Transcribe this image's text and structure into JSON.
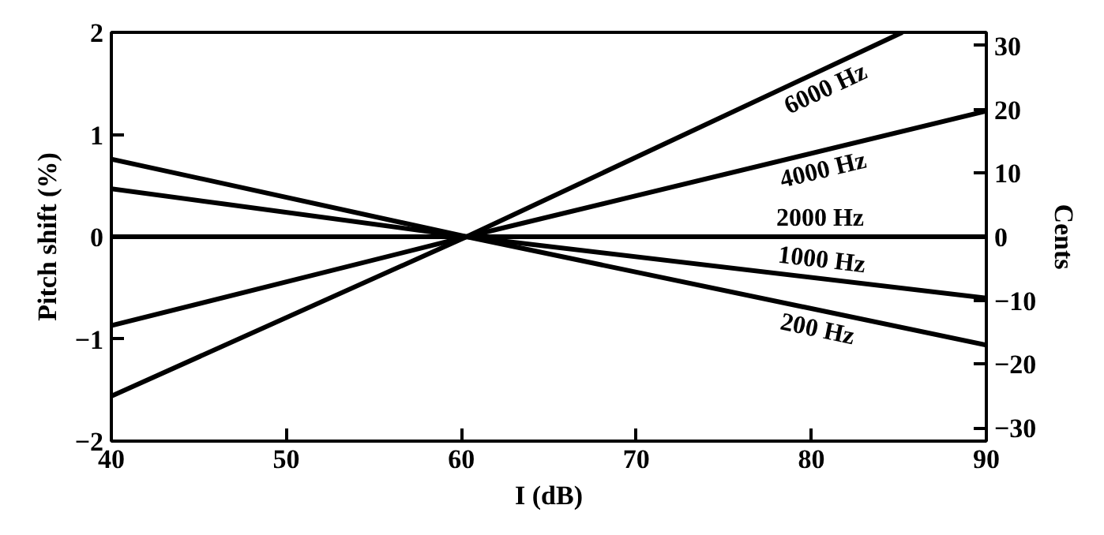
{
  "chart_data": {
    "type": "line",
    "xlabel": "I (dB)",
    "ylabel": "Pitch shift (%)",
    "y2label": "Cents",
    "xlim": [
      40,
      90
    ],
    "xticks": [
      40,
      50,
      60,
      70,
      80,
      90
    ],
    "ylim": [
      -2,
      2
    ],
    "yticks": [
      -2,
      -1,
      0,
      1,
      2
    ],
    "y2lim": [
      -32.1,
      32.1
    ],
    "y2ticks": [
      -30,
      -20,
      -10,
      0,
      10,
      20,
      30
    ],
    "grid": false,
    "series": [
      {
        "name": "6000 Hz",
        "color": "#000000",
        "x": [
          40,
          60.3,
          85.2
        ],
        "values": [
          -1.56,
          0,
          2
        ]
      },
      {
        "name": "4000 Hz",
        "color": "#000000",
        "x": [
          40,
          60.3,
          90
        ],
        "values": [
          -0.87,
          0,
          1.23
        ]
      },
      {
        "name": "2000 Hz",
        "color": "#000000",
        "x": [
          40,
          60.3,
          90
        ],
        "values": [
          0,
          0,
          0
        ]
      },
      {
        "name": "1000 Hz",
        "color": "#000000",
        "x": [
          40,
          60.3,
          90
        ],
        "values": [
          0.47,
          0,
          -0.6
        ]
      },
      {
        "name": "200 Hz",
        "color": "#000000",
        "x": [
          40,
          60.3,
          90
        ],
        "values": [
          0.76,
          0,
          -1.06
        ]
      }
    ]
  }
}
